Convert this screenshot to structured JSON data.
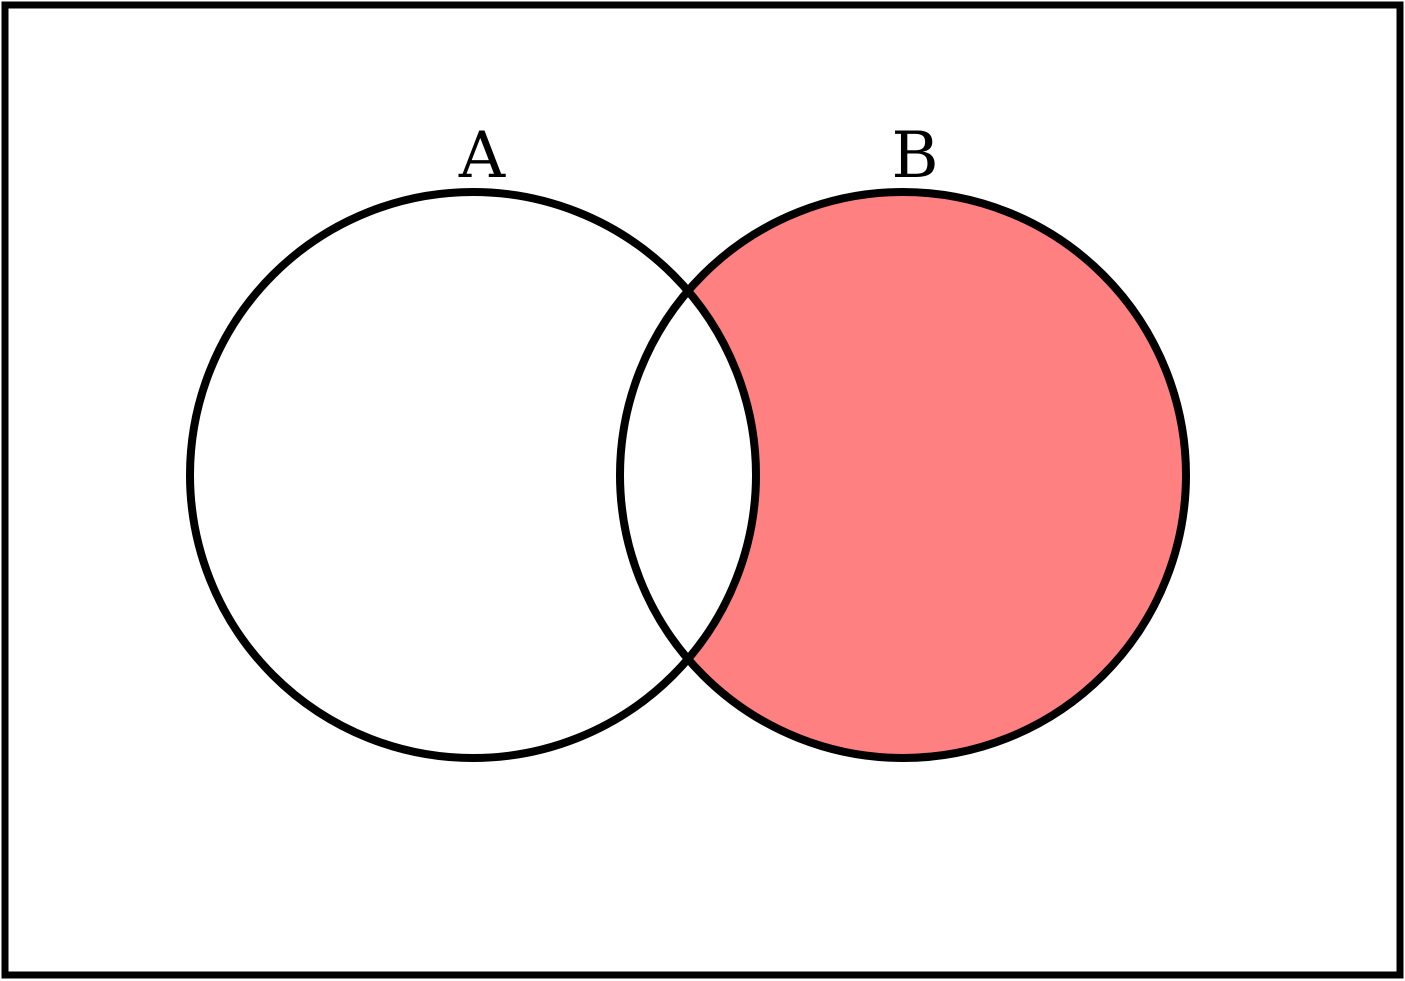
{
  "diagram": {
    "type": "venn",
    "sets": [
      {
        "label": "A",
        "shaded": false
      },
      {
        "label": "B",
        "shaded": true
      }
    ],
    "shaded_region": "B minus A",
    "colors": {
      "shade": "#FF8080",
      "stroke": "#000000",
      "background": "#FFFFFF"
    }
  }
}
